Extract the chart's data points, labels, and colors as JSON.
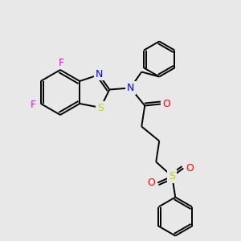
{
  "background_color": "#e8e8e8",
  "bond_color": "#000000",
  "atom_colors": {
    "F": "#ff00ff",
    "N": "#0000ff",
    "S_thiazole": "#cccc00",
    "S_sulfonyl": "#cccc00",
    "O": "#ff0000",
    "C": "#000000"
  },
  "figsize": [
    3.0,
    3.0
  ],
  "dpi": 100
}
